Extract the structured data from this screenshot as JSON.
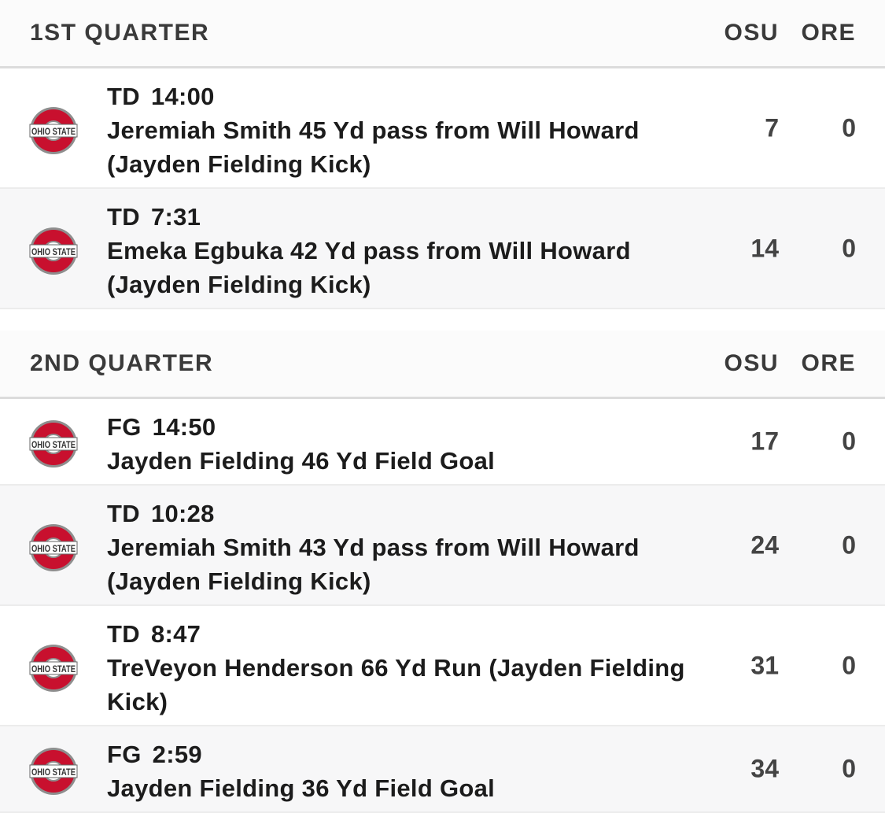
{
  "sections": [
    {
      "title": "1ST QUARTER",
      "columns": [
        "OSU",
        "ORE"
      ],
      "plays": [
        {
          "team": "OHIO STATE",
          "type": "TD",
          "time": "14:00",
          "description": "Jeremiah Smith 45 Yd pass from Will Howard (Jayden Fielding Kick)",
          "scores": [
            7,
            0
          ]
        },
        {
          "team": "OHIO STATE",
          "type": "TD",
          "time": "7:31",
          "description": "Emeka Egbuka 42 Yd pass from Will Howard (Jayden Fielding Kick)",
          "scores": [
            14,
            0
          ]
        }
      ]
    },
    {
      "title": "2ND QUARTER",
      "columns": [
        "OSU",
        "ORE"
      ],
      "plays": [
        {
          "team": "OHIO STATE",
          "type": "FG",
          "time": "14:50",
          "description": "Jayden Fielding 46 Yd Field Goal",
          "scores": [
            17,
            0
          ]
        },
        {
          "team": "OHIO STATE",
          "type": "TD",
          "time": "10:28",
          "description": "Jeremiah Smith 43 Yd pass from Will Howard (Jayden Fielding Kick)",
          "scores": [
            24,
            0
          ]
        },
        {
          "team": "OHIO STATE",
          "type": "TD",
          "time": "8:47",
          "description": "TreVeyon Henderson 66 Yd Run (Jayden Fielding Kick)",
          "scores": [
            31,
            0
          ]
        },
        {
          "team": "OHIO STATE",
          "type": "FG",
          "time": "2:59",
          "description": "Jayden Fielding 36 Yd Field Goal",
          "scores": [
            34,
            0
          ]
        }
      ]
    }
  ]
}
